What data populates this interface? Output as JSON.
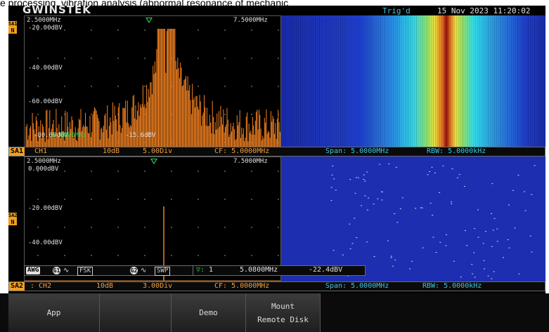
{
  "caption": "e processing, vibration analysis (abnormal resonance of mechanic",
  "header": {
    "brand": "GWINSTEK",
    "trigger_status": "Trig'd",
    "datetime": "15 Nov 2023 11:20:02"
  },
  "sa1": {
    "side_tag": "SA1",
    "side_sub": "N",
    "start_freq": "2.5000MHz",
    "stop_freq": "7.5000MHz",
    "y_labels": [
      "-20.00dBV",
      "-40.00dBV",
      "-60.00dBV",
      "-80.00dBV"
    ],
    "marker_readout_freq": "5.0000MHz",
    "marker_readout_level": "-15.6dBV",
    "info": {
      "badge": "SA1",
      "source": "CH1",
      "scale_db": "10dB",
      "div": "5.00Div",
      "cf": "CF: 5.0000MHz",
      "span": "Span: 5.0000MHz",
      "rbw": "RBW: 5.0000kHz"
    }
  },
  "sa2": {
    "side_tag": "SA2",
    "side_sub": "N",
    "start_freq": "2.5000MHz",
    "stop_freq": "7.5000MHz",
    "y_labels": [
      "0.000dBV",
      "-20.00dBV",
      "-40.00dBV"
    ],
    "info": {
      "badge": "SA2",
      "source": ": CH2",
      "scale_db": "10dB",
      "div": "3.00Div",
      "cf": "CF: 5.0000MHz",
      "span": "Span: 5.0000MHz",
      "rbw": "RBW: 5.0000kHz"
    }
  },
  "awg": {
    "tag": "AWG",
    "g1": "G1",
    "g1_mode": "FSK",
    "g2": "G2",
    "g2_mode": "SWP",
    "marker_id": "1",
    "marker_freq": "5.0800MHz",
    "marker_level": "-22.4dBV"
  },
  "softkeys": [
    {
      "label": "App"
    },
    {
      "label": ""
    },
    {
      "label": "Demo"
    },
    {
      "label": "Mount",
      "label2": "Remote Disk"
    },
    {
      "label": ""
    }
  ],
  "colors": {
    "trace": "#f08020",
    "marker": "#2fd35a",
    "spectrogram_bg": "#1d2fb0",
    "label_blue": "#3ec6e0"
  }
}
